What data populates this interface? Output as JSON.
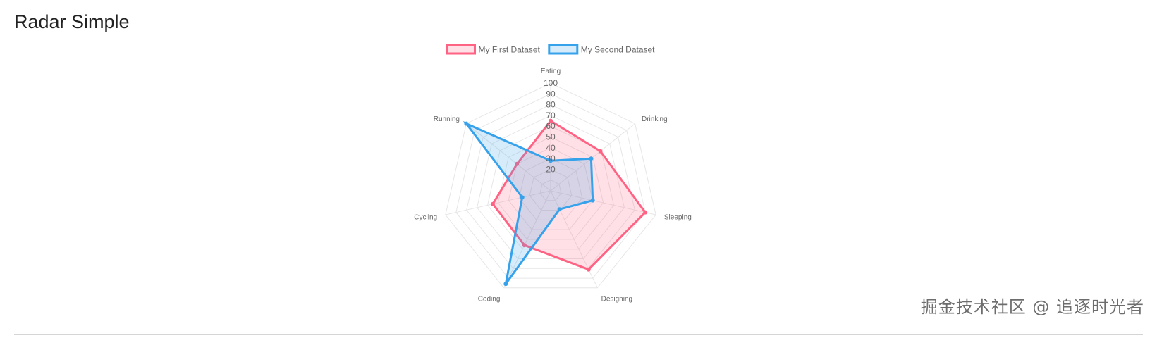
{
  "page": {
    "title": "Radar Simple",
    "watermark": "掘金技术社区 @ 追逐时光者"
  },
  "chart_data": {
    "type": "radar",
    "labels": [
      "Eating",
      "Drinking",
      "Sleeping",
      "Designing",
      "Coding",
      "Cycling",
      "Running"
    ],
    "r_range": [
      0,
      100
    ],
    "r_ticks": [
      20,
      30,
      40,
      50,
      60,
      70,
      80,
      90,
      100
    ],
    "legend_position": "top",
    "grid": true,
    "series": [
      {
        "name": "My First Dataset",
        "values": [
          65,
          59,
          90,
          81,
          56,
          55,
          40
        ],
        "border_color": "#ff6384",
        "fill_color": "rgba(255, 99, 132, 0.2)"
      },
      {
        "name": "My Second Dataset",
        "values": [
          28,
          48,
          40,
          19,
          96,
          27,
          100
        ],
        "border_color": "#36a2eb",
        "fill_color": "rgba(54, 162, 235, 0.2)"
      }
    ]
  }
}
